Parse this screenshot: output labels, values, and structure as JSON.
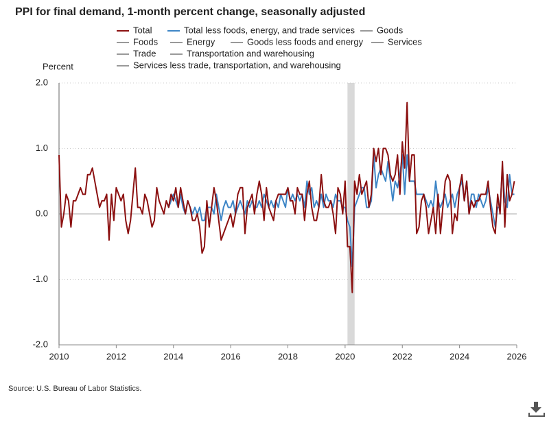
{
  "chart_data": {
    "type": "line",
    "title": "PPI for final demand, 1-month percent change, seasonally adjusted",
    "y_label": "Percent",
    "source": "Source: U.S. Bureau of Labor Statistics.",
    "xlim": [
      2010,
      2026
    ],
    "xticks": [
      2010,
      2012,
      2014,
      2016,
      2018,
      2020,
      2022,
      2024,
      2026
    ],
    "ylim": [
      -2,
      2
    ],
    "yticks": [
      {
        "value": -2,
        "label": "-2.0"
      },
      {
        "value": -1,
        "label": "-1.0"
      },
      {
        "value": 0,
        "label": "0.0"
      },
      {
        "value": 1,
        "label": "1.0"
      },
      {
        "value": 2,
        "label": "2.0"
      }
    ],
    "grid": true,
    "shaded_region": [
      2020.083,
      2020.333
    ],
    "x": [
      2010,
      2010.083,
      2010.167,
      2010.25,
      2010.333,
      2010.417,
      2010.5,
      2010.583,
      2010.667,
      2010.75,
      2010.833,
      2010.917,
      2011,
      2011.083,
      2011.167,
      2011.25,
      2011.333,
      2011.417,
      2011.5,
      2011.583,
      2011.667,
      2011.75,
      2011.833,
      2011.917,
      2012,
      2012.083,
      2012.167,
      2012.25,
      2012.333,
      2012.417,
      2012.5,
      2012.583,
      2012.667,
      2012.75,
      2012.833,
      2012.917,
      2013,
      2013.083,
      2013.167,
      2013.25,
      2013.333,
      2013.417,
      2013.5,
      2013.583,
      2013.667,
      2013.75,
      2013.833,
      2013.917,
      2014,
      2014.083,
      2014.167,
      2014.25,
      2014.333,
      2014.417,
      2014.5,
      2014.583,
      2014.667,
      2014.75,
      2014.833,
      2014.917,
      2015,
      2015.083,
      2015.167,
      2015.25,
      2015.333,
      2015.417,
      2015.5,
      2015.583,
      2015.667,
      2015.75,
      2015.833,
      2015.917,
      2016,
      2016.083,
      2016.167,
      2016.25,
      2016.333,
      2016.417,
      2016.5,
      2016.583,
      2016.667,
      2016.75,
      2016.833,
      2016.917,
      2017,
      2017.083,
      2017.167,
      2017.25,
      2017.333,
      2017.417,
      2017.5,
      2017.583,
      2017.667,
      2017.75,
      2017.833,
      2017.917,
      2018,
      2018.083,
      2018.167,
      2018.25,
      2018.333,
      2018.417,
      2018.5,
      2018.583,
      2018.667,
      2018.75,
      2018.833,
      2018.917,
      2019,
      2019.083,
      2019.167,
      2019.25,
      2019.333,
      2019.417,
      2019.5,
      2019.583,
      2019.667,
      2019.75,
      2019.833,
      2019.917,
      2020,
      2020.083,
      2020.167,
      2020.25,
      2020.333,
      2020.417,
      2020.5,
      2020.583,
      2020.667,
      2020.75,
      2020.833,
      2020.917,
      2021,
      2021.083,
      2021.167,
      2021.25,
      2021.333,
      2021.417,
      2021.5,
      2021.583,
      2021.667,
      2021.75,
      2021.833,
      2021.917,
      2022,
      2022.083,
      2022.167,
      2022.25,
      2022.333,
      2022.417,
      2022.5,
      2022.583,
      2022.667,
      2022.75,
      2022.833,
      2022.917,
      2023,
      2023.083,
      2023.167,
      2023.25,
      2023.333,
      2023.417,
      2023.5,
      2023.583,
      2023.667,
      2023.75,
      2023.833,
      2023.917,
      2024,
      2024.083,
      2024.167,
      2024.25,
      2024.333,
      2024.417,
      2024.5,
      2024.583,
      2024.667,
      2024.75,
      2024.833,
      2024.917,
      2025,
      2025.083,
      2025.167,
      2025.25,
      2025.333,
      2025.417,
      2025.5,
      2025.583,
      2025.667,
      2025.75,
      2025.833,
      2025.917
    ],
    "series": [
      {
        "name": "Total",
        "color": "#8b1010",
        "values": [
          0.9,
          -0.2,
          0.0,
          0.3,
          0.2,
          -0.2,
          0.2,
          0.2,
          0.3,
          0.4,
          0.3,
          0.3,
          0.6,
          0.6,
          0.7,
          0.5,
          0.3,
          0.1,
          0.2,
          0.2,
          0.3,
          -0.4,
          0.3,
          -0.1,
          0.4,
          0.3,
          0.2,
          0.3,
          -0.1,
          -0.3,
          -0.1,
          0.3,
          0.7,
          0.1,
          0.1,
          0.0,
          0.3,
          0.2,
          0.0,
          -0.2,
          -0.1,
          0.4,
          0.2,
          0.1,
          0.0,
          0.2,
          0.1,
          0.3,
          0.2,
          0.4,
          0.1,
          0.4,
          0.2,
          0.0,
          0.2,
          0.1,
          -0.1,
          -0.1,
          0.0,
          -0.2,
          -0.6,
          -0.5,
          0.2,
          -0.2,
          0.1,
          0.4,
          0.2,
          -0.1,
          -0.4,
          -0.3,
          -0.2,
          -0.1,
          0.0,
          -0.2,
          0.0,
          0.3,
          0.4,
          0.4,
          -0.3,
          0.1,
          0.2,
          0.3,
          0.0,
          0.3,
          0.5,
          0.3,
          -0.1,
          0.4,
          0.1,
          0.0,
          -0.1,
          0.2,
          0.3,
          0.3,
          0.3,
          0.3,
          0.4,
          0.2,
          0.2,
          0.0,
          0.4,
          0.3,
          0.3,
          -0.1,
          0.3,
          0.5,
          0.1,
          -0.1,
          -0.1,
          0.1,
          0.6,
          0.2,
          0.1,
          0.1,
          0.2,
          0.0,
          -0.3,
          0.4,
          0.3,
          0.0,
          0.5,
          -0.5,
          -0.5,
          -1.2,
          0.5,
          0.3,
          0.6,
          0.3,
          0.4,
          0.5,
          0.1,
          0.3,
          1.0,
          0.8,
          1.0,
          0.6,
          1.0,
          1.0,
          0.9,
          0.6,
          0.5,
          0.6,
          0.9,
          0.3,
          1.1,
          0.7,
          1.7,
          0.5,
          0.9,
          0.9,
          -0.3,
          -0.2,
          0.2,
          0.3,
          0.1,
          -0.3,
          -0.1,
          0.1,
          -0.3,
          0.3,
          -0.3,
          0.1,
          0.5,
          0.6,
          0.5,
          -0.3,
          0.0,
          -0.1,
          0.4,
          0.6,
          0.2,
          0.5,
          0.0,
          0.2,
          0.1,
          0.2,
          0.2,
          0.3,
          0.3,
          0.3,
          0.5,
          0.1,
          -0.2,
          -0.3,
          0.3,
          0.0,
          0.8,
          -0.2,
          0.6,
          0.2,
          0.3,
          0.5
        ]
      },
      {
        "name": "Total less foods, energy, and trade services",
        "color": "#3d85c6",
        "values": [
          null,
          null,
          null,
          null,
          null,
          null,
          null,
          null,
          null,
          null,
          null,
          null,
          null,
          null,
          null,
          null,
          null,
          null,
          null,
          null,
          null,
          null,
          null,
          null,
          null,
          null,
          null,
          null,
          null,
          null,
          null,
          null,
          null,
          null,
          null,
          null,
          null,
          null,
          null,
          null,
          null,
          null,
          null,
          null,
          null,
          0.2,
          0.1,
          0.2,
          0.3,
          0.2,
          0.1,
          0.3,
          0.1,
          0.0,
          0.2,
          0.1,
          0.0,
          0.1,
          0.0,
          0.1,
          -0.1,
          -0.1,
          0.1,
          0.1,
          0.1,
          0.0,
          0.3,
          0.1,
          -0.1,
          0.1,
          0.2,
          0.1,
          0.1,
          0.2,
          0.0,
          0.1,
          0.2,
          0.1,
          0.0,
          0.2,
          0.1,
          0.2,
          0.1,
          0.1,
          0.2,
          0.1,
          0.3,
          0.2,
          0.1,
          0.2,
          0.1,
          0.2,
          0.1,
          0.3,
          0.2,
          0.1,
          0.4,
          0.2,
          0.3,
          0.2,
          0.3,
          0.2,
          0.3,
          0.1,
          0.5,
          0.3,
          0.4,
          0.1,
          0.2,
          0.1,
          0.3,
          0.1,
          0.3,
          0.2,
          0.2,
          0.1,
          0.3,
          0.2,
          0.2,
          0.1,
          0.1,
          -0.1,
          -0.2,
          -0.8,
          0.1,
          0.2,
          0.3,
          0.4,
          0.4,
          0.1,
          0.1,
          0.2,
          0.9,
          0.4,
          0.6,
          0.7,
          0.6,
          0.5,
          0.8,
          0.5,
          0.2,
          0.5,
          0.4,
          0.6,
          0.9,
          0.3,
          0.9,
          0.5,
          0.5,
          0.5,
          0.3,
          0.3,
          0.3,
          0.3,
          0.2,
          0.1,
          0.2,
          0.1,
          0.5,
          0.2,
          0.1,
          0.2,
          0.3,
          0.1,
          0.2,
          0.3,
          0.1,
          0.3,
          0.4,
          0.5,
          0.2,
          0.5,
          0.0,
          0.3,
          0.3,
          0.1,
          0.3,
          0.2,
          0.1,
          0.2,
          0.4,
          0.2,
          0.0,
          -0.2,
          0.1,
          0.1,
          0.7,
          0.2,
          0.1,
          0.6,
          0.3,
          0.3
        ]
      }
    ],
    "hidden_series": [
      {
        "name": "Goods",
        "color": "#999999"
      },
      {
        "name": "Foods",
        "color": "#999999"
      },
      {
        "name": "Energy",
        "color": "#999999"
      },
      {
        "name": "Goods less foods and energy",
        "color": "#999999"
      },
      {
        "name": "Services",
        "color": "#999999"
      },
      {
        "name": "Trade",
        "color": "#999999"
      },
      {
        "name": "Transportation and warehousing",
        "color": "#999999"
      },
      {
        "name": "Services less trade, transportation, and warehousing",
        "color": "#999999"
      }
    ]
  }
}
